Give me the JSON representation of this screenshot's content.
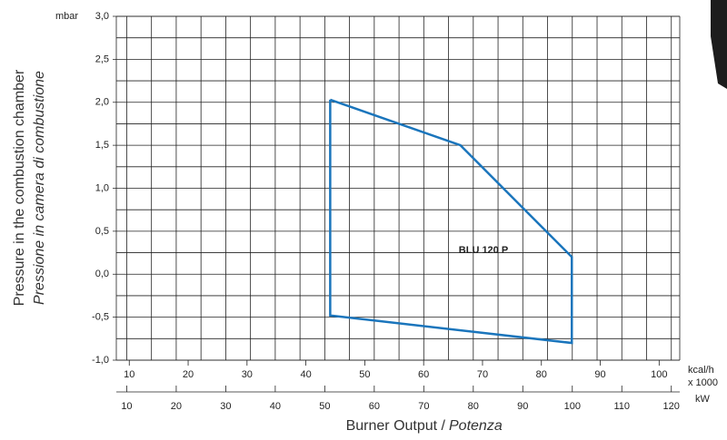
{
  "chart_data": {
    "type": "line",
    "y_label": [
      "Pressure in the combustion chamber",
      "Pressione in camera di combustione"
    ],
    "y_unit": "mbar",
    "x_label": [
      "Burner Output /",
      "Potenza"
    ],
    "x_unit": "kW",
    "x2_unit": [
      "kcal/h",
      "x 1000"
    ],
    "series": [
      {
        "name": "BLU 120 P",
        "color": "#1a75bc",
        "x": [
          51.1,
          77.4,
          99.9,
          99.9,
          51.1,
          51.1
        ],
        "values": [
          2.03,
          1.5,
          0.2,
          -0.8,
          -0.48,
          2.03
        ]
      }
    ],
    "xlim": [
      7.9,
      121.7
    ],
    "xticks": [
      10,
      20,
      30,
      40,
      50,
      60,
      70,
      80,
      90,
      100,
      110,
      120
    ],
    "x_minor_ticks": [
      15,
      25,
      35,
      45,
      55,
      65,
      75,
      85,
      95,
      105,
      115
    ],
    "x2lim": [
      7.8,
      103.5
    ],
    "x2ticks": [
      10,
      20,
      30,
      40,
      50,
      60,
      70,
      80,
      90,
      100
    ],
    "ylim": [
      -1.0,
      3.0
    ],
    "yticks": [
      {
        "value": -1.0,
        "label": "-1,0"
      },
      {
        "value": -0.5,
        "label": "-0,5"
      },
      {
        "value": 0.0,
        "label": "0,0"
      },
      {
        "value": 0.5,
        "label": "0,5"
      },
      {
        "value": 1.0,
        "label": "1,0"
      },
      {
        "value": 1.5,
        "label": "1,5"
      },
      {
        "value": 2.0,
        "label": "2,0"
      },
      {
        "value": 2.5,
        "label": "2,5"
      },
      {
        "value": 3.0,
        "label": "3,0"
      }
    ],
    "y_minor_ticks": [
      -0.75,
      -0.25,
      0.25,
      0.75,
      1.25,
      1.75,
      2.25,
      2.75
    ],
    "grid": true
  }
}
